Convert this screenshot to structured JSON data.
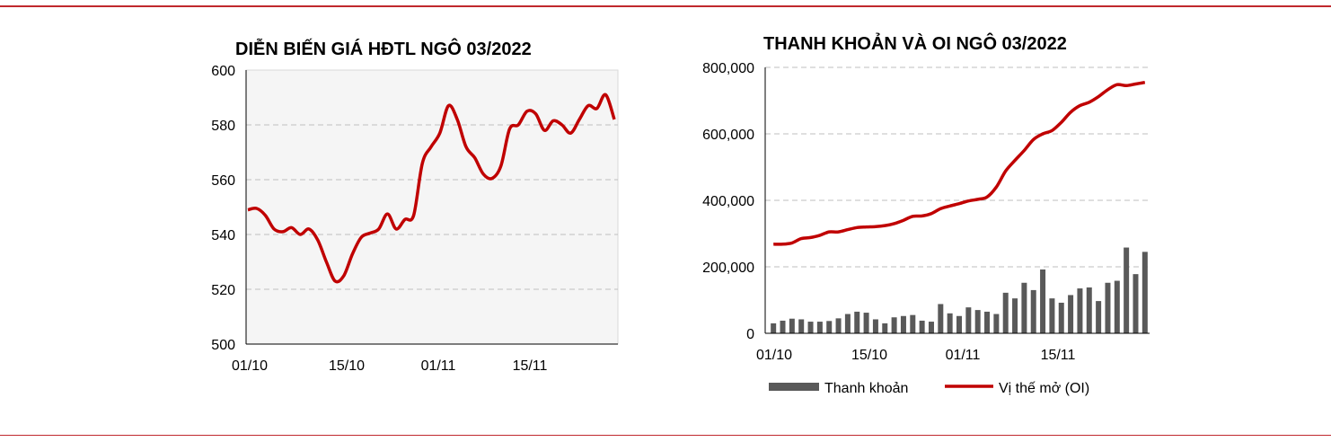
{
  "colors": {
    "rule": "#c0282d",
    "line": "#c00000",
    "bar": "#595959",
    "grid": "#bfbfbf",
    "panel": "#f5f5f5"
  },
  "chart_data": [
    {
      "type": "line",
      "title": "DIỄN BIẾN GIÁ HĐTL NGÔ 03/2022",
      "ylim": [
        500,
        600
      ],
      "yticks": [
        "500",
        "520",
        "540",
        "560",
        "580",
        "600"
      ],
      "xticks": [
        "01/10",
        "15/10",
        "01/11",
        "15/11"
      ],
      "grid": true,
      "series": [
        {
          "values": [
            549,
            549.5,
            547,
            542,
            541,
            542.5,
            540,
            542,
            538,
            530,
            523,
            525,
            533,
            539,
            540.5,
            542,
            547.5,
            542,
            545.5,
            547,
            566,
            572,
            577,
            587,
            582,
            572,
            568,
            562,
            560.5,
            565,
            578.5,
            580,
            585,
            584,
            578,
            581.5,
            580,
            577,
            582,
            587,
            586,
            591,
            582
          ]
        }
      ]
    },
    {
      "type": "bar+line",
      "title": "THANH KHOẢN VÀ OI NGÔ 03/2022",
      "ylim": [
        0,
        800000
      ],
      "yticks": [
        "0",
        "200,000",
        "400,000",
        "600,000",
        "800,000"
      ],
      "xticks": [
        "01/10",
        "15/10",
        "01/11",
        "15/11"
      ],
      "grid": true,
      "legend": {
        "position": "bottom",
        "bar_label": "Thanh khoản",
        "line_label": "Vị thế mở (OI)"
      },
      "bars": [
        30000,
        38000,
        44000,
        42000,
        35000,
        35000,
        37000,
        45000,
        58000,
        65000,
        62000,
        42000,
        30000,
        48000,
        52000,
        55000,
        38000,
        35000,
        88000,
        60000,
        52000,
        78000,
        70000,
        65000,
        58000,
        122000,
        105000,
        152000,
        130000,
        192000,
        105000,
        92000,
        115000,
        135000,
        138000,
        97000,
        152000,
        158000,
        258000,
        178000,
        245000
      ],
      "oi": [
        268000,
        268000,
        272000,
        285000,
        288000,
        295000,
        305000,
        305000,
        312000,
        318000,
        320000,
        321000,
        324000,
        330000,
        340000,
        352000,
        353000,
        360000,
        375000,
        383000,
        390000,
        398000,
        403000,
        410000,
        440000,
        488000,
        520000,
        550000,
        583000,
        600000,
        610000,
        635000,
        665000,
        685000,
        695000,
        712000,
        733000,
        748000,
        745000,
        750000,
        755000
      ]
    }
  ]
}
